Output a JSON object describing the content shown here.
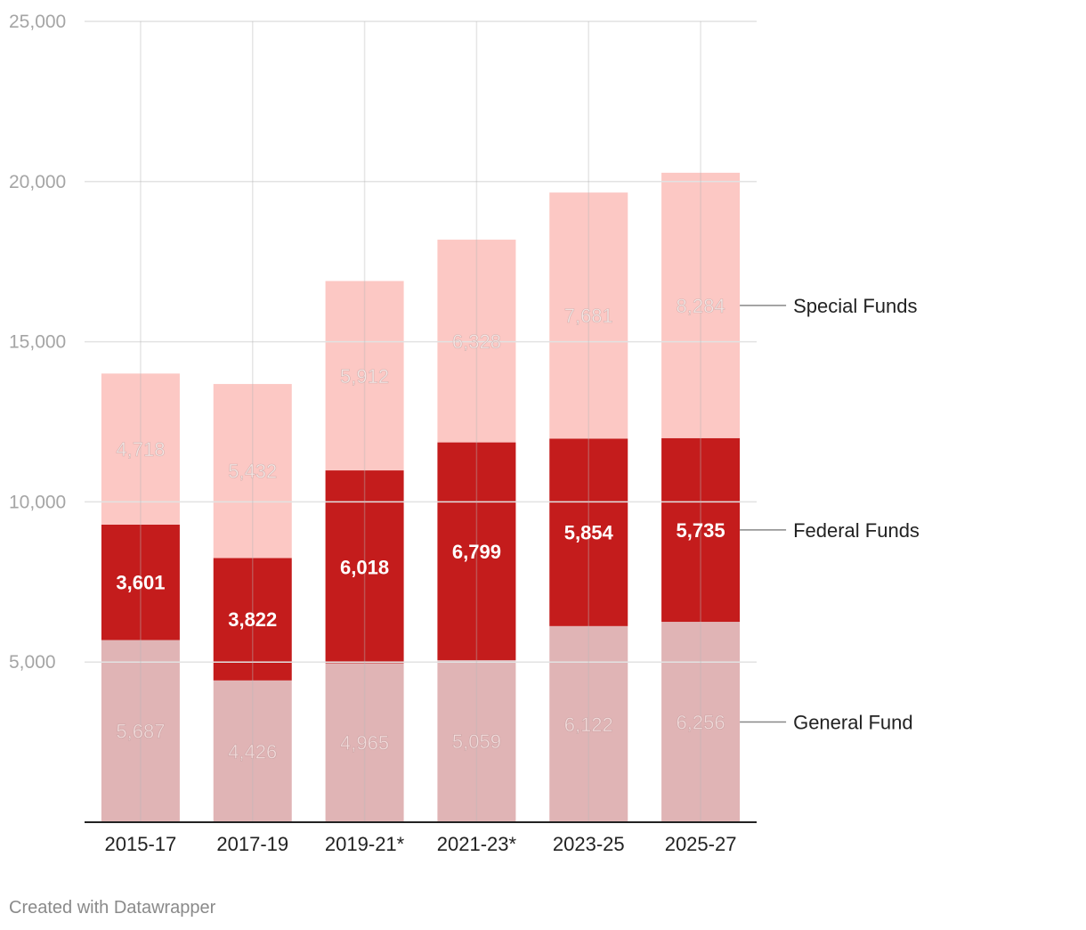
{
  "chart_data": {
    "type": "bar",
    "stacked": true,
    "categories": [
      "2015-17",
      "2017-19",
      "2019-21*",
      "2021-23*",
      "2023-25",
      "2025-27"
    ],
    "series": [
      {
        "name": "General Fund",
        "values": [
          5687,
          4426,
          4965,
          5059,
          6122,
          6256
        ],
        "color": "#e0b4b5",
        "label_color": "#f2dada"
      },
      {
        "name": "Federal Funds",
        "values": [
          3601,
          3822,
          6018,
          6799,
          5854,
          5735
        ],
        "color": "#c41c1c",
        "label_color": "#ffffff"
      },
      {
        "name": "Special Funds",
        "values": [
          4718,
          5432,
          5912,
          6328,
          7681,
          8284
        ],
        "color": "#fcc8c4",
        "label_color": "#f4e6e4"
      }
    ],
    "y_ticks": [
      "5,000",
      "10,000",
      "15,000",
      "20,000",
      "25,000"
    ],
    "y_tick_values": [
      5000,
      10000,
      15000,
      20000,
      25000
    ],
    "ylim": [
      0,
      25000
    ],
    "grid": true,
    "legend": "right, direct labels beside last bar",
    "title": "",
    "xlabel": "",
    "ylabel": ""
  },
  "footer": {
    "credit": "Created with Datawrapper"
  }
}
